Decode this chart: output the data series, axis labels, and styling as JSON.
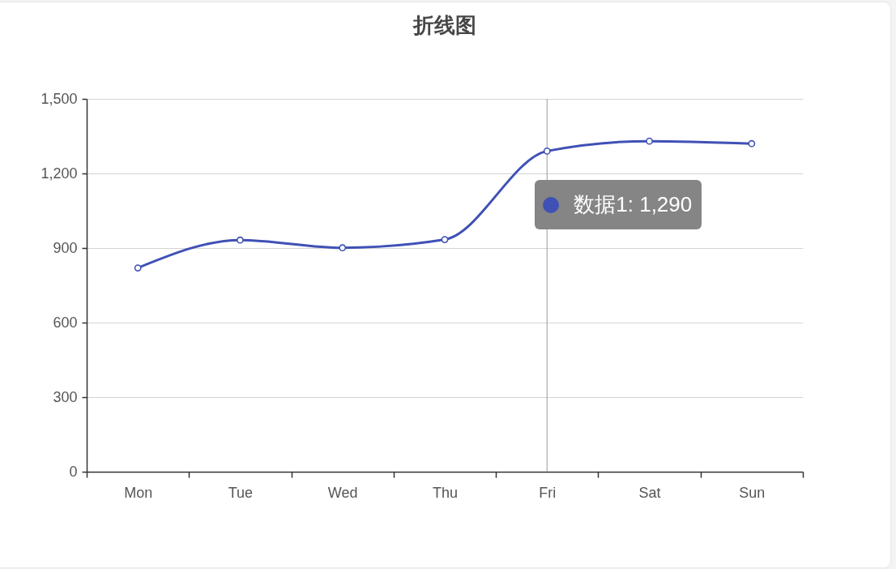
{
  "chart_data": {
    "type": "line",
    "title": "折线图",
    "categories": [
      "Mon",
      "Tue",
      "Wed",
      "Thu",
      "Fri",
      "Sat",
      "Sun"
    ],
    "series": [
      {
        "color": "#3f51b5",
        "values": [
          820,
          932,
          901,
          934,
          1290,
          1330,
          1320
        ]
      }
    ],
    "ylim": [
      0,
      1500
    ],
    "yticks": [
      0,
      300,
      600,
      900,
      {
        "value": 1200,
        "label": "1,200"
      },
      {
        "value": 1500,
        "label": "1,500"
      }
    ],
    "grid": "y",
    "marker": "circle",
    "ref_lines": [
      {
        "axis": "x",
        "value": "Fri",
        "color": "#aaaaaa"
      }
    ],
    "annotations": [
      {
        "text": "数据1: 1,290",
        "x": "Fri",
        "y": 1290
      }
    ]
  }
}
